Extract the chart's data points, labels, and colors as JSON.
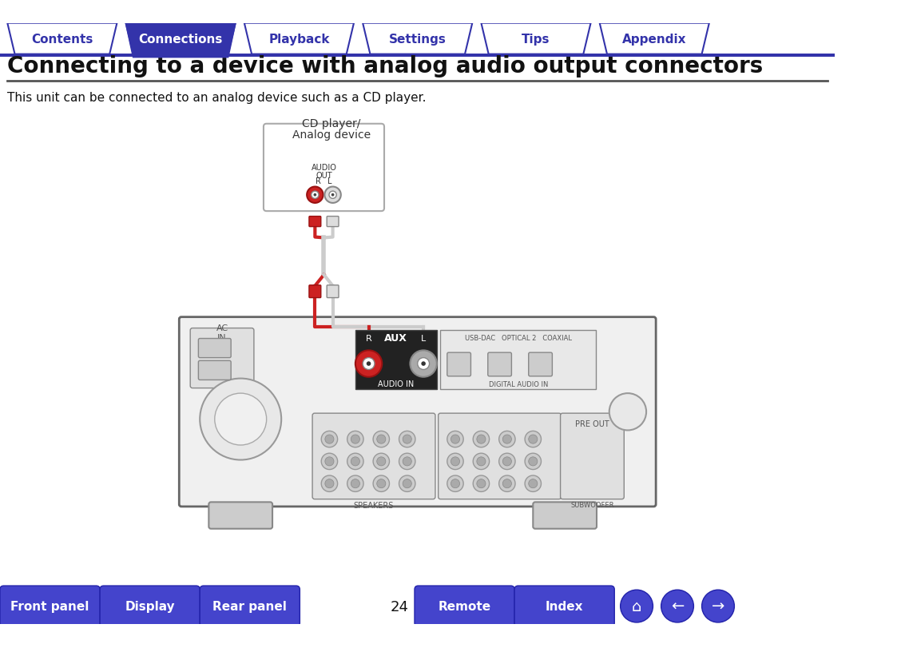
{
  "title": "Connecting to a device with analog audio output connectors",
  "subtitle": "This unit can be connected to an analog device such as a CD player.",
  "tab_labels": [
    "Contents",
    "Connections",
    "Playback",
    "Settings",
    "Tips",
    "Appendix"
  ],
  "active_tab": 1,
  "tab_color_active": "#3333aa",
  "tab_color_inactive": "#ffffff",
  "tab_text_color_active": "#ffffff",
  "tab_text_color_inactive": "#3333aa",
  "tab_border_color": "#3333aa",
  "bottom_buttons": [
    "Front panel",
    "Display",
    "Rear panel",
    "Remote",
    "Index"
  ],
  "bottom_button_color": "#4444cc",
  "page_number": "24",
  "bg_color": "#ffffff",
  "bar_color": "#3333aa",
  "cd_label": "CD player/\nAnalog device",
  "audio_out_label": "AUDIO\nOUT\nR    L"
}
